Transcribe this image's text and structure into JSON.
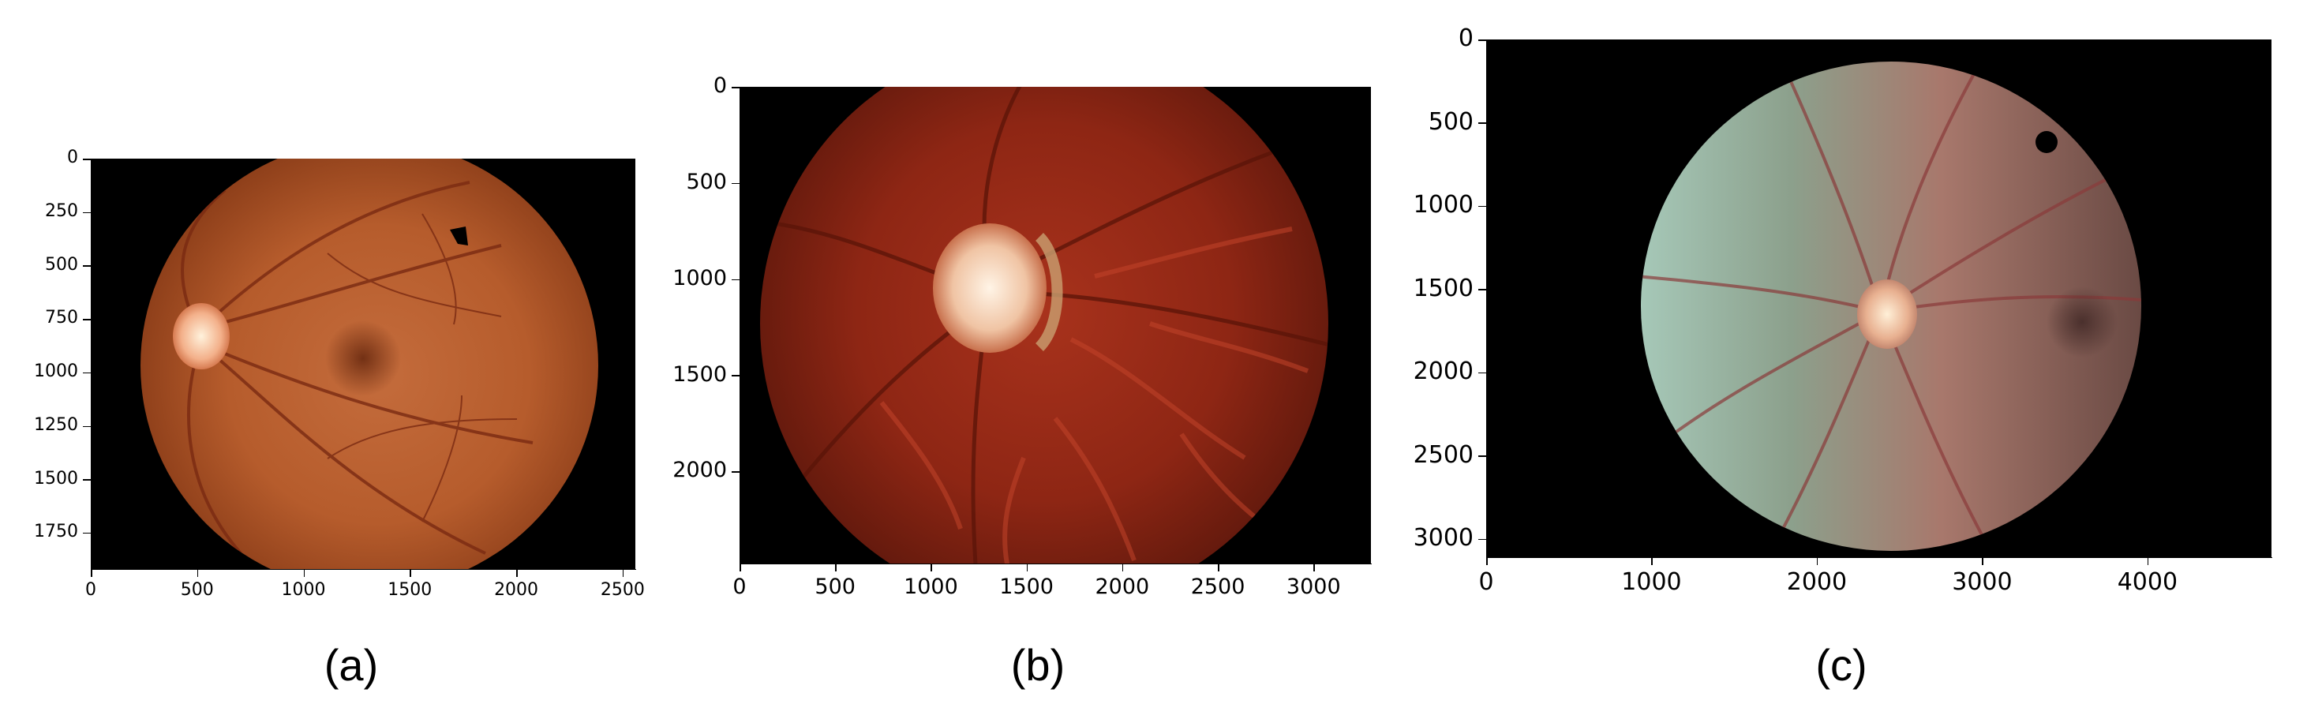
{
  "figures": [
    {
      "id": "a",
      "caption": "(a)",
      "x_ticks": [
        "0",
        "500",
        "1000",
        "1500",
        "2000",
        "2500"
      ],
      "y_ticks": [
        "0",
        "250",
        "500",
        "750",
        "1000",
        "1250",
        "1500",
        "1750"
      ],
      "x_tick_values": [
        0,
        500,
        1000,
        1500,
        2000,
        2500
      ],
      "y_tick_values": [
        0,
        250,
        500,
        750,
        1000,
        1250,
        1500,
        1750
      ],
      "x_range": [
        0,
        2560
      ],
      "y_range": [
        0,
        1920
      ],
      "image": "retinal fundus photograph, orange-brown fundus, optic disc at left, dark macula at center"
    },
    {
      "id": "b",
      "caption": "(b)",
      "x_ticks": [
        "0",
        "500",
        "1000",
        "1500",
        "2000",
        "2500",
        "3000"
      ],
      "y_ticks": [
        "0",
        "500",
        "1000",
        "1500",
        "2000"
      ],
      "x_tick_values": [
        0,
        500,
        1000,
        1500,
        2000,
        2500,
        3000
      ],
      "y_tick_values": [
        0,
        500,
        1000,
        1500,
        2000
      ],
      "x_range": [
        0,
        3300
      ],
      "y_range": [
        0,
        2480
      ],
      "image": "retinal fundus photograph, deep red fundus with visible choroidal vessels, optic disc upper left"
    },
    {
      "id": "c",
      "caption": "(c)",
      "x_ticks": [
        "0",
        "1000",
        "2000",
        "3000",
        "4000"
      ],
      "y_ticks": [
        "0",
        "500",
        "1000",
        "1500",
        "2000",
        "2500",
        "3000"
      ],
      "x_tick_values": [
        0,
        1000,
        2000,
        3000,
        4000
      ],
      "y_tick_values": [
        0,
        500,
        1000,
        1500,
        2000,
        2500,
        3000
      ],
      "x_range": [
        0,
        4750
      ],
      "y_range": [
        0,
        3110
      ],
      "image": "retinal fundus photograph, pale grey-green tint on left, optic disc near center"
    }
  ]
}
